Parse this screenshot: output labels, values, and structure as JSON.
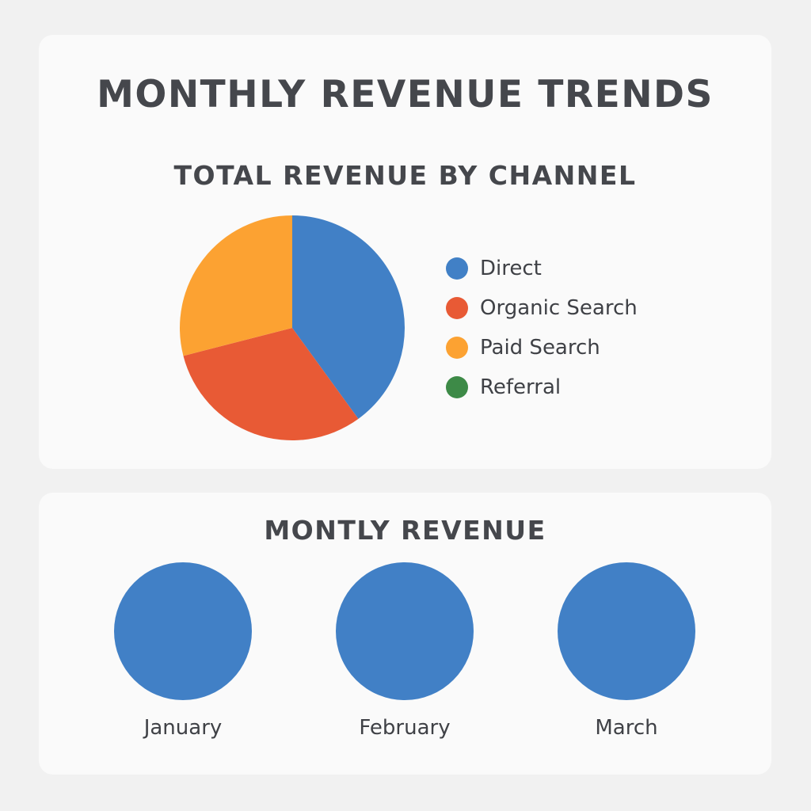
{
  "title": "MONTHLY REVENUE TRENDS",
  "chart_data": [
    {
      "type": "pie",
      "title": "TOTAL REVENUE BY CHANNEL",
      "legend_position": "right",
      "slices": [
        {
          "label": "Direct",
          "value": 40,
          "color": "#4180c6"
        },
        {
          "label": "Organic Search",
          "value": 31,
          "color": "#e85a35"
        },
        {
          "label": "Paid Search",
          "value": 29,
          "color": "#fca232"
        },
        {
          "label": "Referral",
          "value": 0,
          "color": "#3d8a47"
        }
      ]
    },
    {
      "type": "other",
      "title": "MONTLY REVENUE",
      "categories": [
        "January",
        "February",
        "March"
      ],
      "color": "#4180c6"
    }
  ]
}
